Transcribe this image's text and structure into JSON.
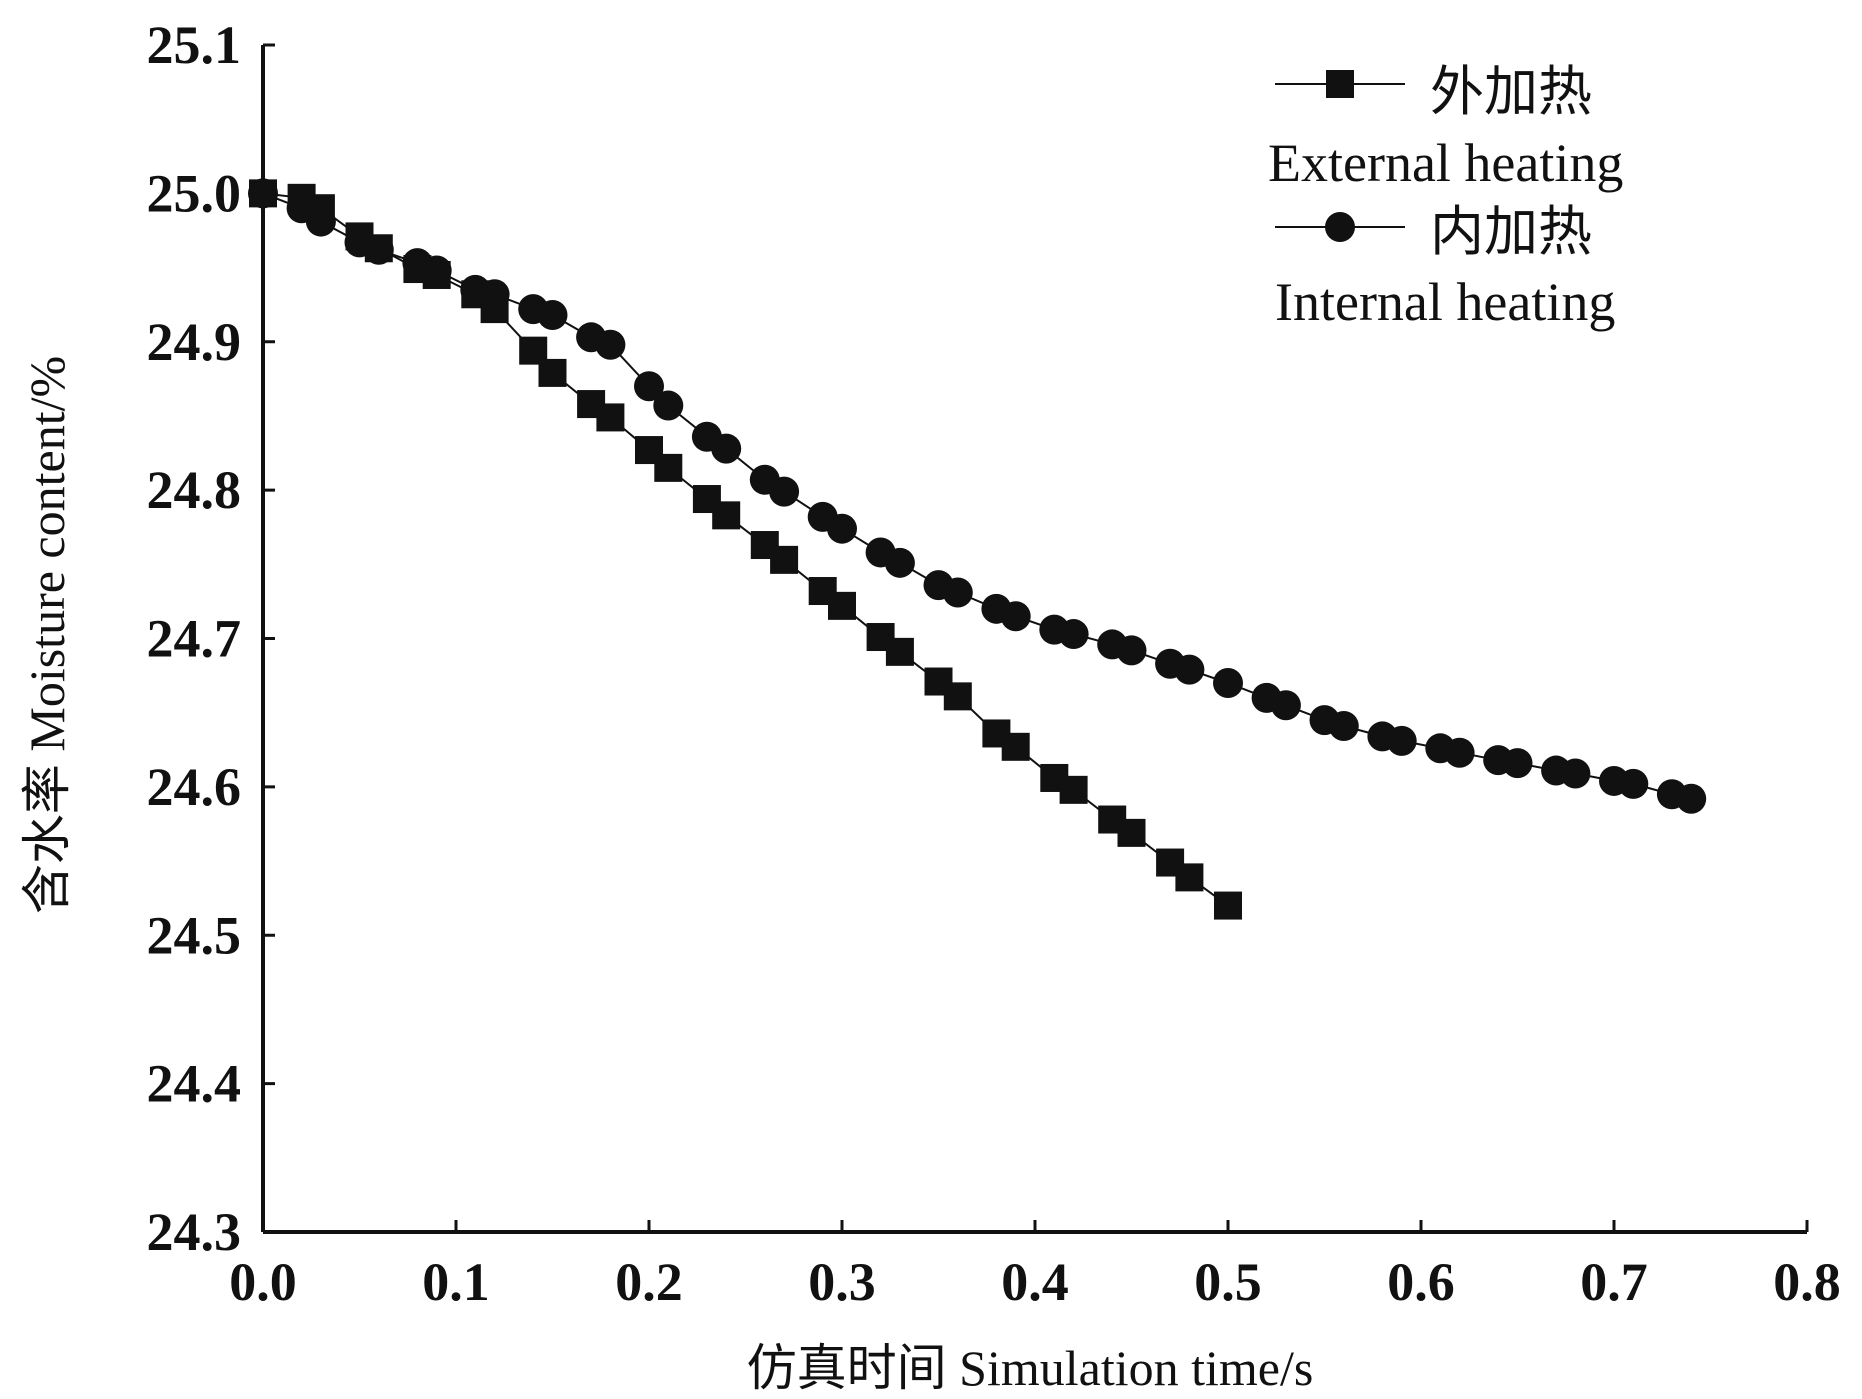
{
  "chart_data": {
    "type": "line",
    "title": "",
    "xlabel": "仿真时间  Simulation time/s",
    "ylabel": "含水率 Moisture content/%",
    "xlim": [
      0.0,
      0.8
    ],
    "ylim": [
      24.3,
      25.1
    ],
    "grid": false,
    "legend_position": "top-right",
    "x_tick_labels": [
      "0.0",
      "0.1",
      "0.2",
      "0.3",
      "0.4",
      "0.5",
      "0.6",
      "0.7",
      "0.8"
    ],
    "y_tick_labels": [
      "24.3",
      "24.4",
      "24.5",
      "24.6",
      "24.7",
      "24.8",
      "24.9",
      "25.0",
      "25.1"
    ],
    "series": [
      {
        "name": "外加热",
        "name_en": "External heating",
        "marker": "square",
        "color": "#111111",
        "x": [
          0.0,
          0.02,
          0.03,
          0.05,
          0.06,
          0.08,
          0.09,
          0.11,
          0.12,
          0.14,
          0.15,
          0.17,
          0.18,
          0.2,
          0.21,
          0.23,
          0.24,
          0.26,
          0.27,
          0.29,
          0.3,
          0.32,
          0.33,
          0.35,
          0.36,
          0.38,
          0.39,
          0.41,
          0.42,
          0.44,
          0.45,
          0.47,
          0.48,
          0.5
        ],
        "values": [
          25.0,
          24.997,
          24.99,
          24.971,
          24.963,
          24.949,
          24.945,
          24.932,
          24.922,
          24.894,
          24.879,
          24.858,
          24.849,
          24.827,
          24.815,
          24.794,
          24.783,
          24.763,
          24.753,
          24.732,
          24.722,
          24.701,
          24.691,
          24.671,
          24.661,
          24.636,
          24.627,
          24.606,
          24.598,
          24.578,
          24.569,
          24.549,
          24.539,
          24.52
        ]
      },
      {
        "name": "内加热",
        "name_en": "Internal heating",
        "marker": "circle",
        "color": "#111111",
        "x": [
          0.0,
          0.02,
          0.03,
          0.05,
          0.06,
          0.08,
          0.09,
          0.11,
          0.12,
          0.14,
          0.15,
          0.17,
          0.18,
          0.2,
          0.21,
          0.23,
          0.24,
          0.26,
          0.27,
          0.29,
          0.3,
          0.32,
          0.33,
          0.35,
          0.36,
          0.38,
          0.39,
          0.41,
          0.42,
          0.44,
          0.45,
          0.47,
          0.48,
          0.5,
          0.52,
          0.53,
          0.55,
          0.56,
          0.58,
          0.59,
          0.61,
          0.62,
          0.64,
          0.65,
          0.67,
          0.68,
          0.7,
          0.71,
          0.73,
          0.74
        ],
        "values": [
          25.0,
          24.99,
          24.981,
          24.967,
          24.962,
          24.953,
          24.948,
          24.935,
          24.932,
          24.922,
          24.918,
          24.903,
          24.898,
          24.87,
          24.857,
          24.836,
          24.828,
          24.807,
          24.799,
          24.782,
          24.774,
          24.758,
          24.751,
          24.736,
          24.731,
          24.72,
          24.715,
          24.706,
          24.703,
          24.696,
          24.692,
          24.683,
          24.679,
          24.67,
          24.66,
          24.655,
          24.645,
          24.641,
          24.634,
          24.631,
          24.626,
          24.623,
          24.618,
          24.616,
          24.611,
          24.609,
          24.604,
          24.602,
          24.595,
          24.592
        ]
      }
    ]
  }
}
